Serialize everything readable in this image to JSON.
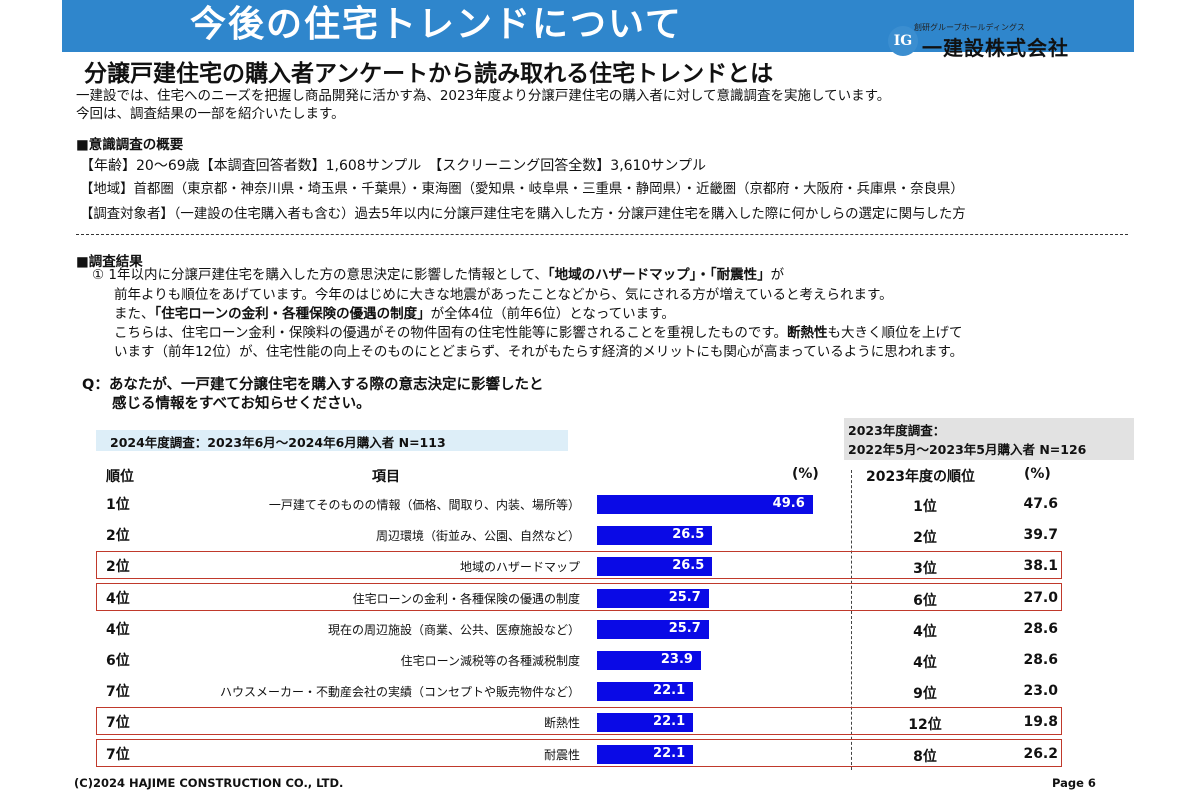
{
  "header": {
    "title": "今後の住宅トレンドについて",
    "logo_group": "創研グループホールディングス",
    "logo_name": "一建設株式会社",
    "logo_mark": "IG"
  },
  "subtitle": "分譲戸建住宅の購入者アンケートから読み取れる住宅トレンドとは",
  "intro": [
    "一建設では、住宅へのニーズを把握し商品開発に活かす為、2023年度より分譲戸建住宅の購入者に対して意識調査を実施しています。",
    "今回は、調査結果の一部を紹介いたします。"
  ],
  "overview": {
    "heading": "■意識調査の概要",
    "lines": [
      "【年齢】20～69歳【本調査回答者数】1,608サンプル　【スクリーニング回答全数】3,610サンプル",
      "【地域】首都圏（東京都・神奈川県・埼玉県・千葉県）・東海圏（愛知県・岐阜県・三重県・静岡県）・近畿圏（京都府・大阪府・兵庫県・奈良県）",
      "【調査対象者】（一建設の住宅購入者も含む）過去5年以内に分譲戸建住宅を購入した方・分譲戸建住宅を購入した際に何かしらの選定に関与した方"
    ]
  },
  "results": {
    "heading": "■調査結果",
    "l1_pre": "① 1年以内に分譲戸建住宅を購入した方の意思決定に影響した情報として、",
    "l1_em": "「地域のハザードマップ」・「耐震性」",
    "l1_post": "が",
    "l2": "前年よりも順位をあげています。今年のはじめに大きな地震があったことなどから、気にされる方が増えていると考えられます。",
    "l3_pre": "また、",
    "l3_em": "「住宅ローンの金利・各種保険の優遇の制度」",
    "l3_post": "が全体4位（前年6位）となっています。",
    "l4_pre": "こちらは、住宅ローン金利・保険料の優遇がその物件固有の住宅性能等に影響されることを重視したものです。",
    "l4_em": "断熱性",
    "l4_post": "も大きく順位を上げて",
    "l5": "います（前年12位）が、住宅性能の向上そのものにとどまらず、それがもたらす経済的メリットにも関心が高まっているように思われます。"
  },
  "question": {
    "line1": "Q：あなたが、一戸建て分譲住宅を購入する際の意志決定に影響したと",
    "line2": "感じる情報をすべてお知らせください。"
  },
  "survey_2024": "2024年度調査：2023年6月～2024年6月購入者 N=113",
  "survey_2023": {
    "line1": "2023年度調査：",
    "line2": "2022年5月～2023年5月購入者 N=126"
  },
  "columns": {
    "rank": "順位",
    "item": "項目",
    "pct": "(%)",
    "rank_2023": "2023年度の順位",
    "pct_2023": "(%)"
  },
  "chart_data": {
    "type": "bar",
    "orientation": "horizontal",
    "xlim": [
      0,
      56
    ],
    "rows": [
      {
        "rank": "1位",
        "item": "一戸建てそのものの情報（価格、間取り、内装、場所等）",
        "value": 49.6,
        "rank_2023": "1位",
        "value_2023": 47.6,
        "highlight": false
      },
      {
        "rank": "2位",
        "item": "周辺環境（街並み、公園、自然など）",
        "value": 26.5,
        "rank_2023": "2位",
        "value_2023": 39.7,
        "highlight": false
      },
      {
        "rank": "2位",
        "item": "地域のハザードマップ",
        "value": 26.5,
        "rank_2023": "3位",
        "value_2023": 38.1,
        "highlight": true
      },
      {
        "rank": "4位",
        "item": "住宅ローンの金利・各種保険の優遇の制度",
        "value": 25.7,
        "rank_2023": "6位",
        "value_2023": 27.0,
        "highlight": true
      },
      {
        "rank": "4位",
        "item": "現在の周辺施設（商業、公共、医療施設など）",
        "value": 25.7,
        "rank_2023": "4位",
        "value_2023": 28.6,
        "highlight": false
      },
      {
        "rank": "6位",
        "item": "住宅ローン減税等の各種減税制度",
        "value": 23.9,
        "rank_2023": "4位",
        "value_2023": 28.6,
        "highlight": false
      },
      {
        "rank": "7位",
        "item": "ハウスメーカー・不動産会社の実績（コンセプトや販売物件など）",
        "value": 22.1,
        "rank_2023": "9位",
        "value_2023": 23.0,
        "highlight": false
      },
      {
        "rank": "7位",
        "item": "断熱性",
        "value": 22.1,
        "rank_2023": "12位",
        "value_2023": 19.8,
        "highlight": true
      },
      {
        "rank": "7位",
        "item": "耐震性",
        "value": 22.1,
        "rank_2023": "8位",
        "value_2023": 26.2,
        "highlight": true
      }
    ],
    "bar_color": "#0a0ae6",
    "highlight_color": "#c0392b"
  },
  "footer": {
    "copyright": "(C)2024 HAJIME CONSTRUCTION CO., LTD.",
    "page": "Page 6"
  }
}
